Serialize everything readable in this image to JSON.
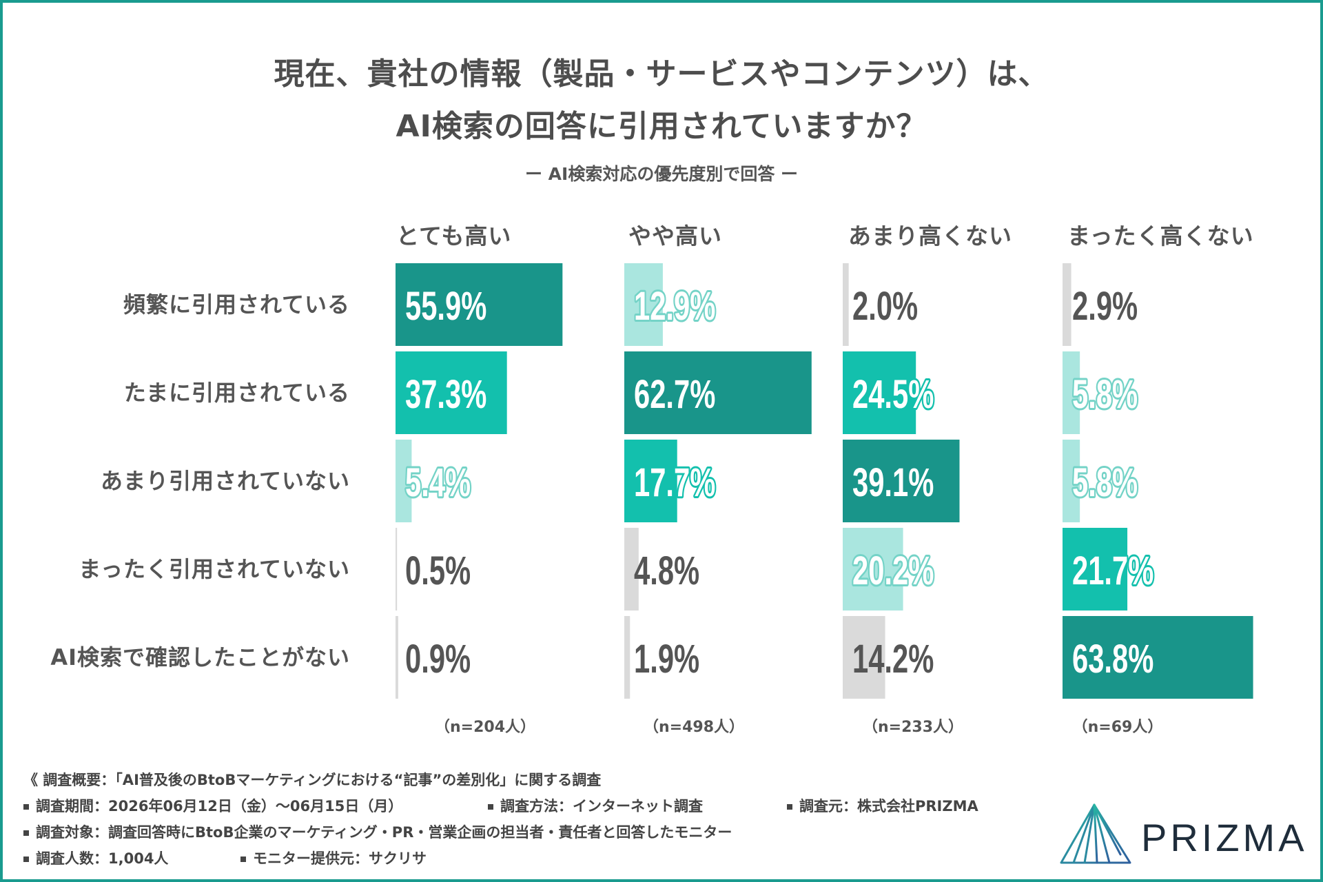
{
  "chart_data": {
    "type": "bar",
    "orientation": "horizontal",
    "title_lines": [
      "現在、貴社の情報（製品・サービスやコンテンツ）は、",
      "AI検索の回答に引用されていますか？"
    ],
    "subtitle": "ー AI検索対応の優先度別で回答 ー",
    "unit": "%",
    "grid": false,
    "categories": [
      "頻繁に引用されている",
      "たまに引用されている",
      "あまり引用されていない",
      "まったく引用されていない",
      "AI検索で確認したことがない"
    ],
    "series": [
      {
        "name": "とても高い",
        "n": "（n=204人）",
        "values": [
          55.9,
          37.3,
          5.4,
          0.5,
          0.9
        ]
      },
      {
        "name": "やや高い",
        "n": "（n=498人）",
        "values": [
          12.9,
          62.7,
          17.7,
          4.8,
          1.9
        ]
      },
      {
        "name": "あまり高くない",
        "n": "（n=233人）",
        "values": [
          2.0,
          24.5,
          39.1,
          20.2,
          14.2
        ]
      },
      {
        "name": "まったく高くない",
        "n": "（n=69人）",
        "values": [
          2.9,
          5.8,
          5.8,
          21.7,
          63.8
        ]
      }
    ]
  },
  "footer": {
    "overview": "《 調査概要：「AI普及後のBtoBマーケティングにおける“記事”の差別化」に関する調査",
    "period": "調査期間：2026年06月12日（金）〜06月15日（月）",
    "method": "調査方法：インターネット調査",
    "source": "調査元：株式会社PRIZMA",
    "target": "調査対象：調査回答時にBtoB企業のマーケティング・PR・営業企画の担当者・責任者と回答したモニター",
    "count": "調査人数：1,004人",
    "panel": "モニター提供元：サクリサ"
  },
  "logo": {
    "text": "PRIZMA",
    "icon": "prizma-mountain-icon"
  },
  "colors": {
    "frame": "#1a9b8f",
    "highest": "#19958a",
    "second": "#13c0ad",
    "third": "#aae6df",
    "third_outline": "#74d3c7",
    "rest": "#dadada",
    "text": "#555555",
    "logo_teal": "#27b5a3",
    "logo_blue": "#2f5f9e"
  }
}
